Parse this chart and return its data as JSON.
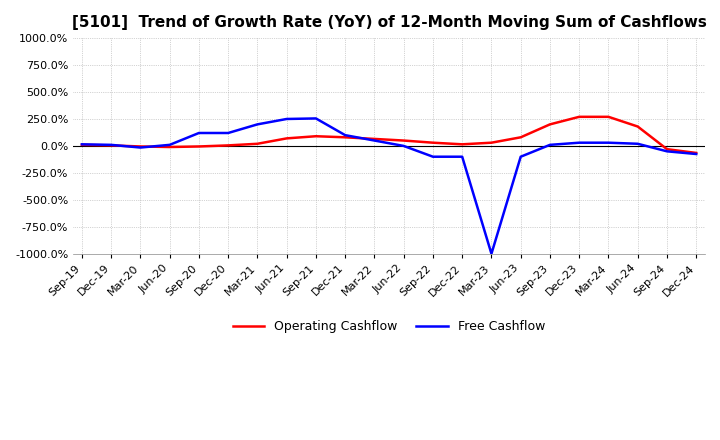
{
  "title": "[5101]  Trend of Growth Rate (YoY) of 12-Month Moving Sum of Cashflows",
  "x_labels": [
    "Sep-19",
    "Dec-19",
    "Mar-20",
    "Jun-20",
    "Sep-20",
    "Dec-20",
    "Mar-21",
    "Jun-21",
    "Sep-21",
    "Dec-21",
    "Mar-22",
    "Jun-22",
    "Sep-22",
    "Dec-22",
    "Mar-23",
    "Jun-23",
    "Sep-23",
    "Dec-23",
    "Mar-24",
    "Jun-24",
    "Sep-24",
    "Dec-24"
  ],
  "operating_cashflow": [
    10,
    5,
    -5,
    -10,
    -5,
    5,
    20,
    70,
    90,
    80,
    65,
    50,
    30,
    15,
    30,
    80,
    200,
    270,
    270,
    180,
    -30,
    -65
  ],
  "free_cashflow": [
    15,
    10,
    -15,
    10,
    120,
    120,
    200,
    250,
    255,
    100,
    50,
    0,
    -100,
    -100,
    -1000,
    -100,
    10,
    30,
    30,
    20,
    -50,
    -75
  ],
  "ylim": [
    -1000,
    1000
  ],
  "yticks": [
    -1000,
    -750,
    -500,
    -250,
    0,
    250,
    500,
    750,
    1000
  ],
  "operating_color": "#FF0000",
  "free_color": "#0000FF",
  "background_color": "#FFFFFF",
  "grid_color": "#AAAAAA",
  "grid_style": "dotted",
  "title_fontsize": 11,
  "tick_fontsize": 8,
  "legend_labels": [
    "Operating Cashflow",
    "Free Cashflow"
  ]
}
